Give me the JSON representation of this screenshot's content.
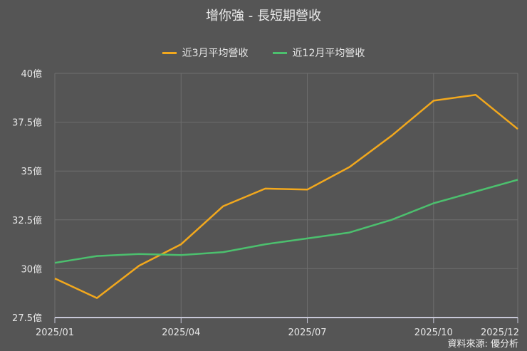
{
  "title": "增你強 - 長短期營收",
  "source": "資料來源: 優分析",
  "legend": [
    {
      "label": "近3月平均營收",
      "color": "#f2a81d"
    },
    {
      "label": "近12月平均營收",
      "color": "#4cc06e"
    }
  ],
  "chart_data": {
    "type": "line",
    "title": "增你強 - 長短期營收",
    "xlabel": "",
    "ylabel": "",
    "x": [
      "2025/01",
      "2025/02",
      "2025/03",
      "2025/04",
      "2025/05",
      "2025/06",
      "2025/07",
      "2025/08",
      "2025/09",
      "2025/10",
      "2025/11",
      "2025/12"
    ],
    "x_tick_labels": [
      "2025/01",
      "2025/04",
      "2025/07",
      "2025/10",
      "2025/12"
    ],
    "y_tick_labels": [
      "27.5億",
      "30億",
      "32.5億",
      "35億",
      "37.5億",
      "40億"
    ],
    "y_ticks": [
      27.5,
      30,
      32.5,
      35,
      37.5,
      40
    ],
    "ylim": [
      27.5,
      40
    ],
    "y_unit": "億",
    "grid": true,
    "legend_position": "top",
    "series": [
      {
        "name": "近3月平均營收",
        "color": "#f2a81d",
        "values": [
          29.5,
          28.5,
          30.15,
          31.25,
          33.2,
          34.1,
          34.05,
          35.2,
          36.8,
          38.6,
          38.9,
          37.15
        ]
      },
      {
        "name": "近12月平均營收",
        "color": "#4cc06e",
        "values": [
          30.3,
          30.65,
          30.75,
          30.7,
          30.85,
          31.25,
          31.55,
          31.85,
          32.5,
          33.35,
          33.95,
          34.55
        ]
      }
    ]
  }
}
